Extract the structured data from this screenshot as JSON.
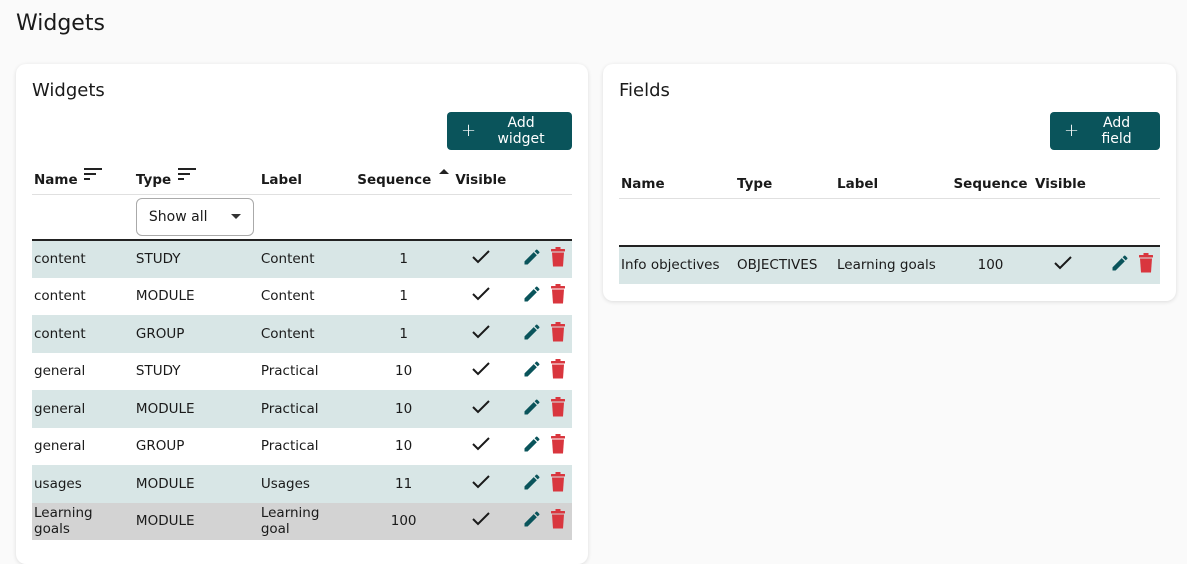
{
  "page": {
    "title": "Widgets"
  },
  "widgets": {
    "title": "Widgets",
    "add_label": "Add widget",
    "columns": {
      "name": "Name",
      "type": "Type",
      "label": "Label",
      "sequence": "Sequence",
      "visible": "Visible"
    },
    "filter": {
      "value": "Show all"
    },
    "rows": [
      {
        "name": "content",
        "type": "STUDY",
        "label": "Content",
        "sequence": "1",
        "visible": true
      },
      {
        "name": "content",
        "type": "MODULE",
        "label": "Content",
        "sequence": "1",
        "visible": true
      },
      {
        "name": "content",
        "type": "GROUP",
        "label": "Content",
        "sequence": "1",
        "visible": true
      },
      {
        "name": "general",
        "type": "STUDY",
        "label": "Practical",
        "sequence": "10",
        "visible": true
      },
      {
        "name": "general",
        "type": "MODULE",
        "label": "Practical",
        "sequence": "10",
        "visible": true
      },
      {
        "name": "general",
        "type": "GROUP",
        "label": "Practical",
        "sequence": "10",
        "visible": true
      },
      {
        "name": "usages",
        "type": "MODULE",
        "label": "Usages",
        "sequence": "11",
        "visible": true
      },
      {
        "name": "Learning goals",
        "type": "MODULE",
        "label": "Learning goal",
        "sequence": "100",
        "visible": true
      }
    ]
  },
  "fields": {
    "title": "Fields",
    "add_label": "Add field",
    "columns": {
      "name": "Name",
      "type": "Type",
      "label": "Label",
      "sequence": "Sequence",
      "visible": "Visible"
    },
    "rows": [
      {
        "name": "Info objectives",
        "type": "OBJECTIVES",
        "label": "Learning goals",
        "sequence": "100",
        "visible": true
      }
    ]
  },
  "colors": {
    "primary": "#0a545b",
    "delete": "#d9363e",
    "row_alt": "#d8e6e6",
    "row_highlight": "#d3d3d3"
  },
  "icons": {
    "sort": "sort-lines-icon",
    "sort_asc": "caret-up-icon",
    "visible": "check-icon",
    "edit": "pencil-icon",
    "delete": "trash-icon",
    "add": "plus-icon"
  }
}
